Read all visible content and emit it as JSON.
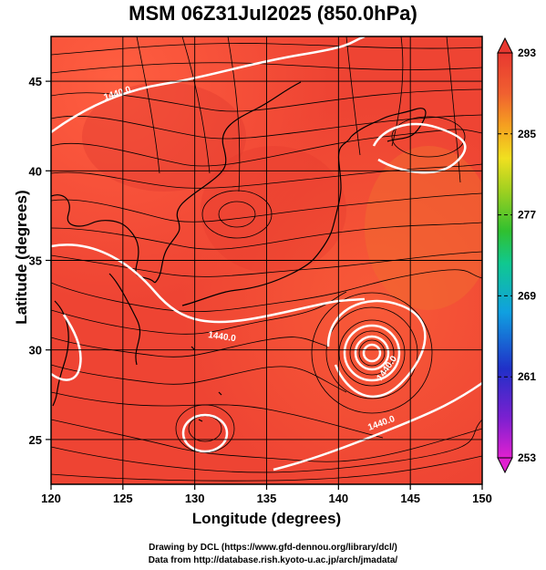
{
  "title": "MSM 06Z31Jul2025 (850.0hPa)",
  "x_axis": {
    "label": "Longitude (degrees)",
    "min": 120,
    "max": 150,
    "ticks": [
      "120",
      "125",
      "130",
      "135",
      "140",
      "145",
      "150"
    ]
  },
  "y_axis": {
    "label": "Latitude  (degrees)",
    "min": 22.5,
    "max": 47.5,
    "ticks": [
      "25",
      "30",
      "35",
      "40",
      "45"
    ]
  },
  "colorbar": {
    "min": 253,
    "max": 293,
    "ticks": [
      "293",
      "285",
      "277",
      "269",
      "261",
      "253"
    ],
    "colors": [
      "#e020d0",
      "#7a20d0",
      "#2030c8",
      "#10a0e0",
      "#10c890",
      "#30c030",
      "#a0d020",
      "#f0e020",
      "#f5a020",
      "#f06030",
      "#e83830",
      "#ff4040"
    ]
  },
  "contour_labels": [
    "1440.0",
    "1440.0",
    "1440.0",
    "1440.0"
  ],
  "credits": {
    "line1": "Drawing by DCL (https://www.gfd-dennou.org/library/dcl/)",
    "line2": "Data from http://database.rish.kyoto-u.ac.jp/arch/jmadata/"
  },
  "colors": {
    "field_main": "#ee4433",
    "field_warm": "#ff5a3c",
    "field_cool": "#e83b30",
    "streamline": "#000000",
    "contour": "#ffffff",
    "coastline": "#000000"
  }
}
